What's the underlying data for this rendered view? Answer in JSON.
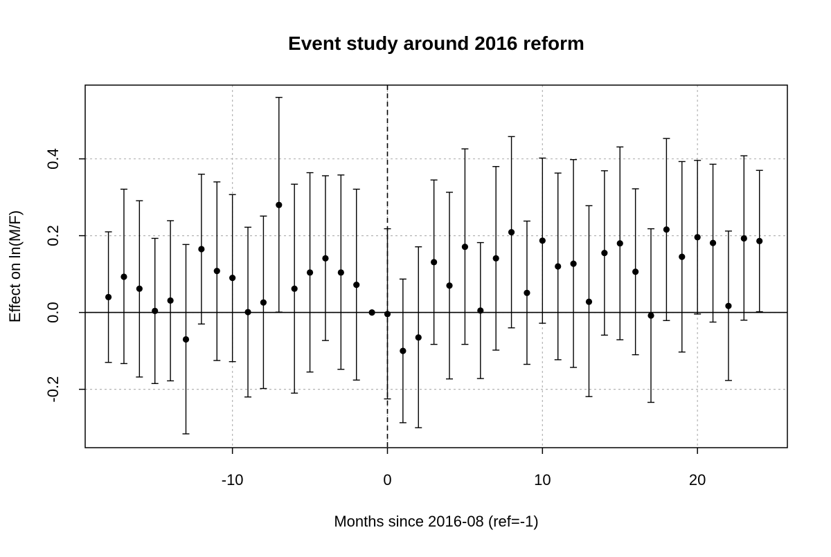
{
  "chart_data": {
    "type": "scatter",
    "title": "Event study around 2016 reform",
    "xlabel": "Months since 2016-08 (ref=-1)",
    "ylabel": "Effect on ln(M/F)",
    "xlim": [
      -19.5,
      25.8
    ],
    "ylim": [
      -0.352,
      0.592
    ],
    "xticks": [
      -10,
      0,
      10,
      20
    ],
    "xtick_labels": [
      "-10",
      "0",
      "10",
      "20"
    ],
    "yticks": [
      -0.2,
      0.0,
      0.2,
      0.4
    ],
    "ytick_labels": [
      "-0.2",
      "0.0",
      "0.2",
      "0.4"
    ],
    "grid": true,
    "reference_lines": {
      "horizontal_y": 0,
      "vertical_x": 0
    },
    "series": [
      {
        "points": [
          {
            "x": -18,
            "y": 0.04,
            "lo": -0.13,
            "hi": 0.21
          },
          {
            "x": -17,
            "y": 0.093,
            "lo": -0.133,
            "hi": 0.321
          },
          {
            "x": -16,
            "y": 0.062,
            "lo": -0.168,
            "hi": 0.291
          },
          {
            "x": -15,
            "y": 0.004,
            "lo": -0.185,
            "hi": 0.193
          },
          {
            "x": -14,
            "y": 0.031,
            "lo": -0.178,
            "hi": 0.239
          },
          {
            "x": -13,
            "y": -0.07,
            "lo": -0.316,
            "hi": 0.177
          },
          {
            "x": -12,
            "y": 0.165,
            "lo": -0.03,
            "hi": 0.36
          },
          {
            "x": -11,
            "y": 0.108,
            "lo": -0.125,
            "hi": 0.34
          },
          {
            "x": -10,
            "y": 0.09,
            "lo": -0.128,
            "hi": 0.307
          },
          {
            "x": -9,
            "y": 0.001,
            "lo": -0.22,
            "hi": 0.222
          },
          {
            "x": -8,
            "y": 0.026,
            "lo": -0.198,
            "hi": 0.251
          },
          {
            "x": -7,
            "y": 0.28,
            "lo": 0.001,
            "hi": 0.56
          },
          {
            "x": -6,
            "y": 0.062,
            "lo": -0.21,
            "hi": 0.334
          },
          {
            "x": -5,
            "y": 0.104,
            "lo": -0.155,
            "hi": 0.364
          },
          {
            "x": -4,
            "y": 0.141,
            "lo": -0.073,
            "hi": 0.356
          },
          {
            "x": -3,
            "y": 0.104,
            "lo": -0.148,
            "hi": 0.358
          },
          {
            "x": -2,
            "y": 0.072,
            "lo": -0.176,
            "hi": 0.321
          },
          {
            "x": -1,
            "y": 0.0,
            "lo": 0.0,
            "hi": 0.0
          },
          {
            "x": 0,
            "y": -0.004,
            "lo": -0.225,
            "hi": 0.218
          },
          {
            "x": 1,
            "y": -0.1,
            "lo": -0.287,
            "hi": 0.087
          },
          {
            "x": 2,
            "y": -0.065,
            "lo": -0.3,
            "hi": 0.171
          },
          {
            "x": 3,
            "y": 0.131,
            "lo": -0.083,
            "hi": 0.345
          },
          {
            "x": 4,
            "y": 0.07,
            "lo": -0.173,
            "hi": 0.313
          },
          {
            "x": 5,
            "y": 0.171,
            "lo": -0.083,
            "hi": 0.426
          },
          {
            "x": 6,
            "y": 0.005,
            "lo": -0.172,
            "hi": 0.182
          },
          {
            "x": 7,
            "y": 0.141,
            "lo": -0.098,
            "hi": 0.38
          },
          {
            "x": 8,
            "y": 0.209,
            "lo": -0.04,
            "hi": 0.458
          },
          {
            "x": 9,
            "y": 0.051,
            "lo": -0.135,
            "hi": 0.238
          },
          {
            "x": 10,
            "y": 0.187,
            "lo": -0.028,
            "hi": 0.402
          },
          {
            "x": 11,
            "y": 0.12,
            "lo": -0.123,
            "hi": 0.363
          },
          {
            "x": 12,
            "y": 0.127,
            "lo": -0.143,
            "hi": 0.398
          },
          {
            "x": 13,
            "y": 0.028,
            "lo": -0.219,
            "hi": 0.278
          },
          {
            "x": 14,
            "y": 0.155,
            "lo": -0.059,
            "hi": 0.369
          },
          {
            "x": 15,
            "y": 0.18,
            "lo": -0.071,
            "hi": 0.431
          },
          {
            "x": 16,
            "y": 0.106,
            "lo": -0.11,
            "hi": 0.322
          },
          {
            "x": 17,
            "y": -0.008,
            "lo": -0.234,
            "hi": 0.218
          },
          {
            "x": 18,
            "y": 0.216,
            "lo": -0.021,
            "hi": 0.453
          },
          {
            "x": 19,
            "y": 0.145,
            "lo": -0.103,
            "hi": 0.393
          },
          {
            "x": 20,
            "y": 0.196,
            "lo": -0.004,
            "hi": 0.396
          },
          {
            "x": 21,
            "y": 0.181,
            "lo": -0.025,
            "hi": 0.386
          },
          {
            "x": 22,
            "y": 0.017,
            "lo": -0.177,
            "hi": 0.212
          },
          {
            "x": 23,
            "y": 0.193,
            "lo": -0.02,
            "hi": 0.408
          },
          {
            "x": 24,
            "y": 0.186,
            "lo": 0.002,
            "hi": 0.37
          }
        ]
      }
    ],
    "colors": {
      "points": "#000000",
      "grid": "#b3b3b3",
      "axes": "#000000"
    }
  }
}
